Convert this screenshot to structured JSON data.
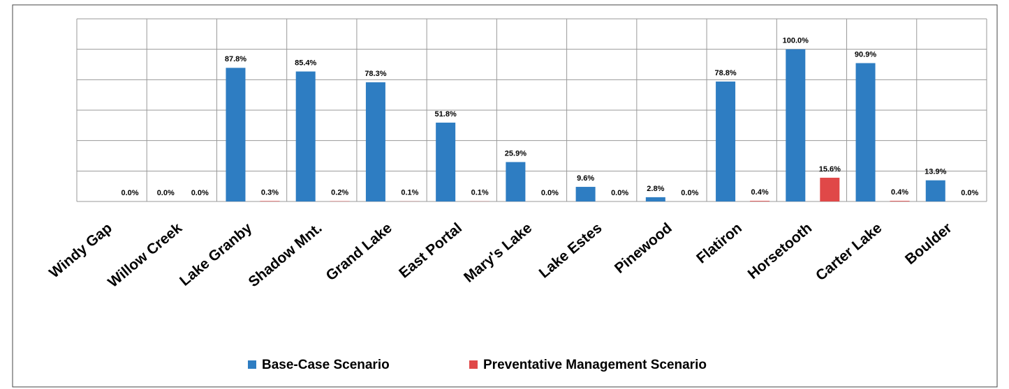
{
  "chart_data": {
    "type": "bar",
    "categories": [
      "Windy Gap",
      "Willow Creek",
      "Lake Granby",
      "Shadow Mnt.",
      "Grand Lake",
      "East Portal",
      "Mary's Lake",
      "Lake Estes",
      "Pinewood",
      "Flatiron",
      "Horsetooth",
      "Carter Lake",
      "Boulder"
    ],
    "series": [
      {
        "name": "Base-Case Scenario",
        "color": "#2e7dc2",
        "values": [
          0,
          0,
          87.8,
          85.4,
          78.3,
          51.8,
          25.9,
          9.6,
          2.8,
          78.8,
          100,
          90.9,
          13.9
        ],
        "value_labels": [
          null,
          "0.0%",
          "87.8%",
          "85.4%",
          "78.3%",
          "51.8%",
          "25.9%",
          "9.6%",
          "2.8%",
          "78.8%",
          "100.0%",
          "90.9%",
          "13.9%"
        ]
      },
      {
        "name": "Preventative Management Scenario",
        "color": "#e04848",
        "values": [
          0,
          0,
          0.3,
          0.2,
          0.1,
          0.1,
          0,
          0,
          0,
          0.4,
          15.6,
          0.4,
          0
        ],
        "value_labels": [
          "0.0%",
          "0.0%",
          "0.3%",
          "0.2%",
          "0.1%",
          "0.1%",
          "0.0%",
          "0.0%",
          "0.0%",
          "0.4%",
          "15.6%",
          "0.4%",
          "0.0%"
        ]
      }
    ],
    "ylim": [
      0,
      120
    ],
    "yticks": [
      0,
      20,
      40,
      60,
      80,
      100,
      120
    ],
    "grid": true,
    "legend": "bottom"
  }
}
